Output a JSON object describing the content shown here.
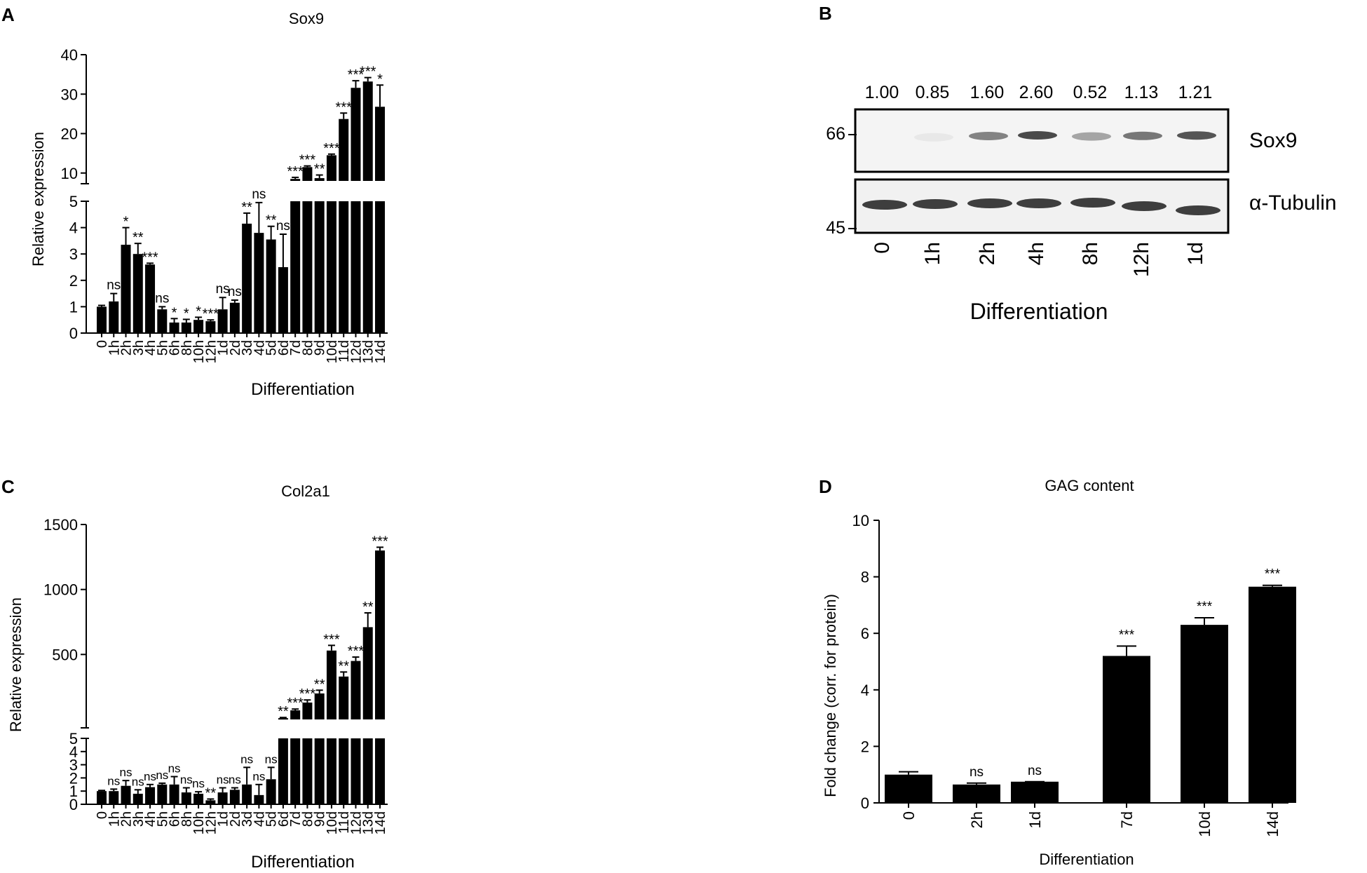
{
  "panels": {
    "A": "A",
    "B": "B",
    "C": "C",
    "D": "D"
  },
  "chart_data": [
    {
      "id": "A",
      "type": "bar",
      "title": "Sox9",
      "xlabel": "Differentiation",
      "ylabel": "Relative expression",
      "broken_axis": true,
      "lower_ylim": [
        0,
        5
      ],
      "upper_ylim": [
        8,
        40
      ],
      "lower_yticks": [
        "0",
        "1",
        "2",
        "3",
        "4",
        "5"
      ],
      "upper_yticks": [
        "10",
        "20",
        "30",
        "40"
      ],
      "categories": [
        "0",
        "1h",
        "2h",
        "3h",
        "4h",
        "5h",
        "6h",
        "8h",
        "10h",
        "12h",
        "1d",
        "2d",
        "3d",
        "4d",
        "5d",
        "6d",
        "7d",
        "8d",
        "9d",
        "10d",
        "11d",
        "12d",
        "13d",
        "14d"
      ],
      "values": [
        1.0,
        1.2,
        3.35,
        3.0,
        2.6,
        0.9,
        0.4,
        0.4,
        0.5,
        0.45,
        0.9,
        1.15,
        4.15,
        3.8,
        3.55,
        2.5,
        8.5,
        11.5,
        8.7,
        14.5,
        23.7,
        31.6,
        33.2,
        26.8
      ],
      "errors": [
        0.05,
        0.3,
        0.65,
        0.4,
        0.05,
        0.1,
        0.15,
        0.12,
        0.1,
        0.05,
        0.45,
        0.1,
        0.4,
        1.15,
        0.5,
        1.25,
        0.4,
        0.3,
        0.8,
        0.3,
        1.5,
        1.8,
        1.0,
        5.5
      ],
      "significance": [
        "",
        "ns",
        "*",
        "**",
        "***",
        "ns",
        "*",
        "*",
        "*",
        "***",
        "ns",
        "ns",
        "**",
        "ns",
        "**",
        "ns",
        "***",
        "***",
        "**",
        "***",
        "***",
        "***",
        "***",
        "*"
      ]
    },
    {
      "id": "B",
      "type": "western_blot",
      "xlabel": "Differentiation",
      "lanes": [
        "0",
        "1h",
        "2h",
        "4h",
        "8h",
        "12h",
        "1d"
      ],
      "quantification": [
        "1.00",
        "0.85",
        "1.60",
        "2.60",
        "0.52",
        "1.13",
        "1.21"
      ],
      "band_intensity_sox9": [
        0.0,
        0.05,
        0.5,
        0.75,
        0.35,
        0.55,
        0.7
      ],
      "markers": [
        "66",
        "45"
      ],
      "blots": [
        "Sox9",
        "α-Tubulin"
      ]
    },
    {
      "id": "C",
      "type": "bar",
      "title": "Col2a1",
      "xlabel": "Differentiation",
      "ylabel": "Relative expression",
      "broken_axis": true,
      "lower_ylim": [
        0,
        5
      ],
      "upper_ylim": [
        0,
        1500
      ],
      "lower_yticks": [
        "0",
        "1",
        "2",
        "3",
        "4",
        "5"
      ],
      "upper_yticks": [
        "500",
        "1000",
        "1500"
      ],
      "categories": [
        "0",
        "1h",
        "2h",
        "3h",
        "4h",
        "5h",
        "6h",
        "8h",
        "10h",
        "12h",
        "1d",
        "2d",
        "3d",
        "4d",
        "5d",
        "6d",
        "7d",
        "8d",
        "9d",
        "10d",
        "11d",
        "12d",
        "13d",
        "14d"
      ],
      "values": [
        1.0,
        1.0,
        1.4,
        0.8,
        1.3,
        1.5,
        1.5,
        0.9,
        0.8,
        0.3,
        0.9,
        1.1,
        1.5,
        0.7,
        1.9,
        10,
        70,
        130,
        200,
        530,
        330,
        450,
        710,
        1300
      ],
      "errors": [
        0.05,
        0.15,
        0.4,
        0.3,
        0.2,
        0.1,
        0.6,
        0.35,
        0.15,
        0.1,
        0.35,
        0.15,
        1.3,
        0.8,
        0.9,
        5,
        10,
        20,
        25,
        40,
        35,
        30,
        110,
        25
      ],
      "significance": [
        "",
        "ns",
        "ns",
        "ns",
        "ns",
        "ns",
        "ns",
        "ns",
        "ns",
        "**",
        "ns",
        "ns",
        "ns",
        "ns",
        "ns",
        "**",
        "***",
        "***",
        "**",
        "***",
        "**",
        "***",
        "**",
        "***"
      ]
    },
    {
      "id": "D",
      "type": "bar",
      "title": "GAG content",
      "xlabel": "Differentiation",
      "ylabel": "Fold change (corr. for protein)",
      "ylim": [
        0,
        10
      ],
      "yticks": [
        "0",
        "2",
        "4",
        "6",
        "8",
        "10"
      ],
      "categories": [
        "0",
        "2h",
        "1d",
        "7d",
        "10d",
        "14d"
      ],
      "values": [
        1.0,
        0.65,
        0.75,
        5.2,
        6.3,
        7.65
      ],
      "errors": [
        0.1,
        0.05,
        0.0,
        0.35,
        0.25,
        0.05
      ],
      "significance": [
        "",
        "ns",
        "ns",
        "***",
        "***",
        "***"
      ]
    }
  ]
}
